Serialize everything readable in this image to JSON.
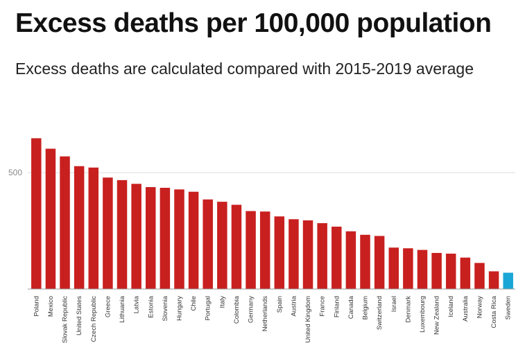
{
  "title": "Excess deaths per 100,000 population",
  "subtitle": "Excess deaths are calculated compared with 2015-2019 average",
  "colors": {
    "bar": "#c8201f",
    "highlight": "#1aa6d6",
    "gridline": "#dddddd",
    "axis": "#999999"
  },
  "chart_data": {
    "type": "bar",
    "title": "Excess deaths per 100,000 population",
    "subtitle": "Excess deaths are calculated compared with 2015-2019 average",
    "xlabel": "",
    "ylabel": "",
    "ylim": [
      0,
      650
    ],
    "yticks": [
      500
    ],
    "grid": true,
    "highlight_category": "Sweden",
    "categories": [
      "Poland",
      "Mexico",
      "Slovak Republic",
      "United States",
      "Czech Republic",
      "Greece",
      "Lithuania",
      "Latvia",
      "Estonia",
      "Slovenia",
      "Hungary",
      "Chile",
      "Portugal",
      "Italy",
      "Colombia",
      "Germany",
      "Netherlands",
      "Spain",
      "Austria",
      "United Kingdom",
      "France",
      "Finland",
      "Canada",
      "Belgium",
      "Switzerland",
      "Israel",
      "Denmark",
      "Luxembourg",
      "New Zealand",
      "Iceland",
      "Australia",
      "Norway",
      "Costa Rica",
      "Sweden"
    ],
    "values": [
      648,
      603,
      570,
      528,
      522,
      479,
      468,
      452,
      438,
      435,
      428,
      418,
      385,
      375,
      362,
      335,
      333,
      312,
      300,
      295,
      283,
      268,
      248,
      233,
      228,
      178,
      175,
      168,
      155,
      152,
      135,
      112,
      76,
      70
    ]
  }
}
